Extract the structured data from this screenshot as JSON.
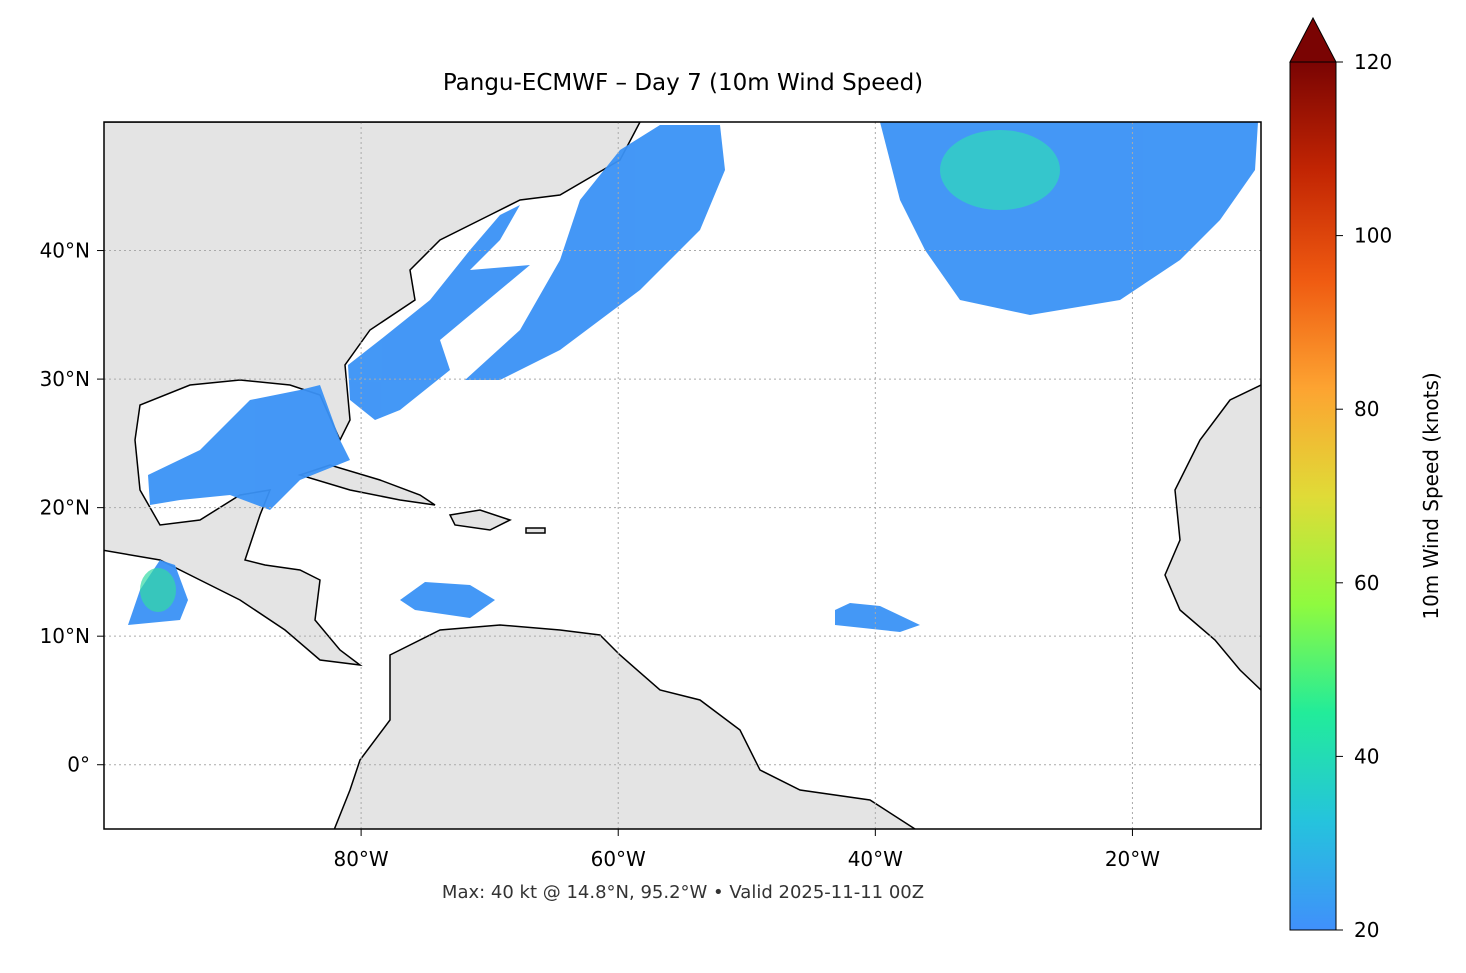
{
  "chart_data": {
    "type": "map",
    "title": "Pangu-ECMWF – Day 7 (10m Wind Speed)",
    "footnote": "Max: 40 kt @ 14.8°N, 95.2°W • Valid 2025-11-11 00Z",
    "xlim": [
      -100,
      -10
    ],
    "ylim": [
      -5,
      50
    ],
    "xticks": [
      {
        "value": -80,
        "label": "80°W"
      },
      {
        "value": -60,
        "label": "60°W"
      },
      {
        "value": -40,
        "label": "40°W"
      },
      {
        "value": -20,
        "label": "20°W"
      }
    ],
    "yticks": [
      {
        "value": 0,
        "label": "0°"
      },
      {
        "value": 10,
        "label": "10°N"
      },
      {
        "value": 20,
        "label": "20°N"
      },
      {
        "value": 30,
        "label": "30°N"
      },
      {
        "value": 40,
        "label": "40°N"
      }
    ],
    "grid": true,
    "colorbar": {
      "label": "10m Wind Speed (knots)",
      "lim": [
        20,
        120
      ],
      "ticks": [
        20,
        40,
        60,
        80,
        100,
        120
      ],
      "colors": [
        "#4090fb",
        "#25c3dd",
        "#22ec9a",
        "#8ffa3f",
        "#e0db37",
        "#fda331",
        "#ef5a11",
        "#c22503",
        "#7a0403"
      ]
    }
  }
}
